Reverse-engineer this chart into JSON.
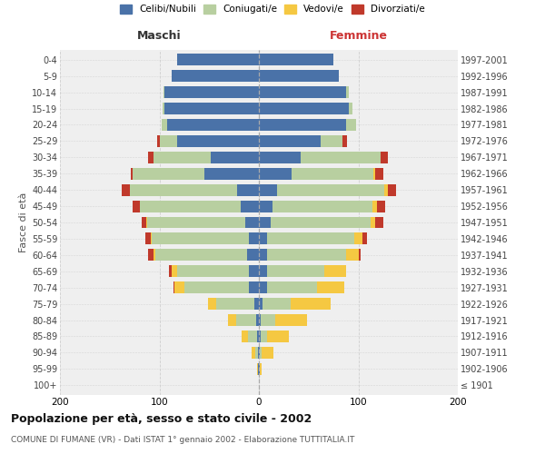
{
  "age_groups": [
    "100+",
    "95-99",
    "90-94",
    "85-89",
    "80-84",
    "75-79",
    "70-74",
    "65-69",
    "60-64",
    "55-59",
    "50-54",
    "45-49",
    "40-44",
    "35-39",
    "30-34",
    "25-29",
    "20-24",
    "15-19",
    "10-14",
    "5-9",
    "0-4"
  ],
  "birth_years": [
    "≤ 1901",
    "1902-1906",
    "1907-1911",
    "1912-1916",
    "1917-1921",
    "1922-1926",
    "1927-1931",
    "1932-1936",
    "1937-1941",
    "1942-1946",
    "1947-1951",
    "1952-1956",
    "1957-1961",
    "1962-1966",
    "1967-1971",
    "1972-1976",
    "1977-1981",
    "1982-1986",
    "1987-1991",
    "1992-1996",
    "1997-2001"
  ],
  "maschi_celibi": [
    0,
    1,
    1,
    2,
    3,
    5,
    10,
    10,
    12,
    10,
    14,
    18,
    22,
    55,
    48,
    82,
    92,
    95,
    95,
    88,
    82
  ],
  "maschi_coniugati": [
    0,
    0,
    3,
    9,
    20,
    38,
    65,
    72,
    92,
    98,
    98,
    102,
    108,
    72,
    58,
    18,
    6,
    2,
    1,
    0,
    0
  ],
  "maschi_vedovi": [
    0,
    1,
    3,
    6,
    8,
    8,
    10,
    6,
    2,
    1,
    1,
    0,
    0,
    0,
    0,
    0,
    0,
    0,
    0,
    0,
    0
  ],
  "maschi_divorziati": [
    0,
    0,
    0,
    0,
    0,
    0,
    1,
    2,
    5,
    5,
    5,
    7,
    8,
    2,
    5,
    2,
    0,
    0,
    0,
    0,
    0
  ],
  "femmine_nubili": [
    0,
    1,
    1,
    2,
    2,
    4,
    8,
    8,
    8,
    8,
    12,
    14,
    18,
    33,
    42,
    62,
    88,
    90,
    88,
    80,
    75
  ],
  "femmine_coniugate": [
    0,
    0,
    2,
    6,
    14,
    28,
    50,
    58,
    80,
    88,
    100,
    100,
    108,
    82,
    80,
    22,
    10,
    4,
    2,
    0,
    0
  ],
  "femmine_vedove": [
    0,
    2,
    12,
    22,
    32,
    40,
    28,
    22,
    12,
    8,
    5,
    5,
    4,
    2,
    0,
    0,
    0,
    0,
    0,
    0,
    0
  ],
  "femmine_divorziate": [
    0,
    0,
    0,
    0,
    0,
    0,
    0,
    0,
    2,
    5,
    8,
    8,
    8,
    8,
    8,
    5,
    0,
    0,
    0,
    0,
    0
  ],
  "color_celibi": "#4a72a8",
  "color_coniugati": "#b8cfa0",
  "color_vedovi": "#f5c842",
  "color_divorziati": "#c0392b",
  "legend_labels": [
    "Celibi/Nubili",
    "Coniugati/e",
    "Vedovi/e",
    "Divorziati/e"
  ],
  "header_left": "Maschi",
  "header_right": "Femmine",
  "ylabel_left": "Fasce di età",
  "title": "Popolazione per età, sesso e stato civile - 2002",
  "subtitle": "COMUNE DI FUMANE (VR) - Dati ISTAT 1° gennaio 2002 - Elaborazione TUTTITALIA.IT",
  "bg_color": "#ffffff",
  "plot_bg": "#efefef",
  "grid_color": "#cccccc"
}
